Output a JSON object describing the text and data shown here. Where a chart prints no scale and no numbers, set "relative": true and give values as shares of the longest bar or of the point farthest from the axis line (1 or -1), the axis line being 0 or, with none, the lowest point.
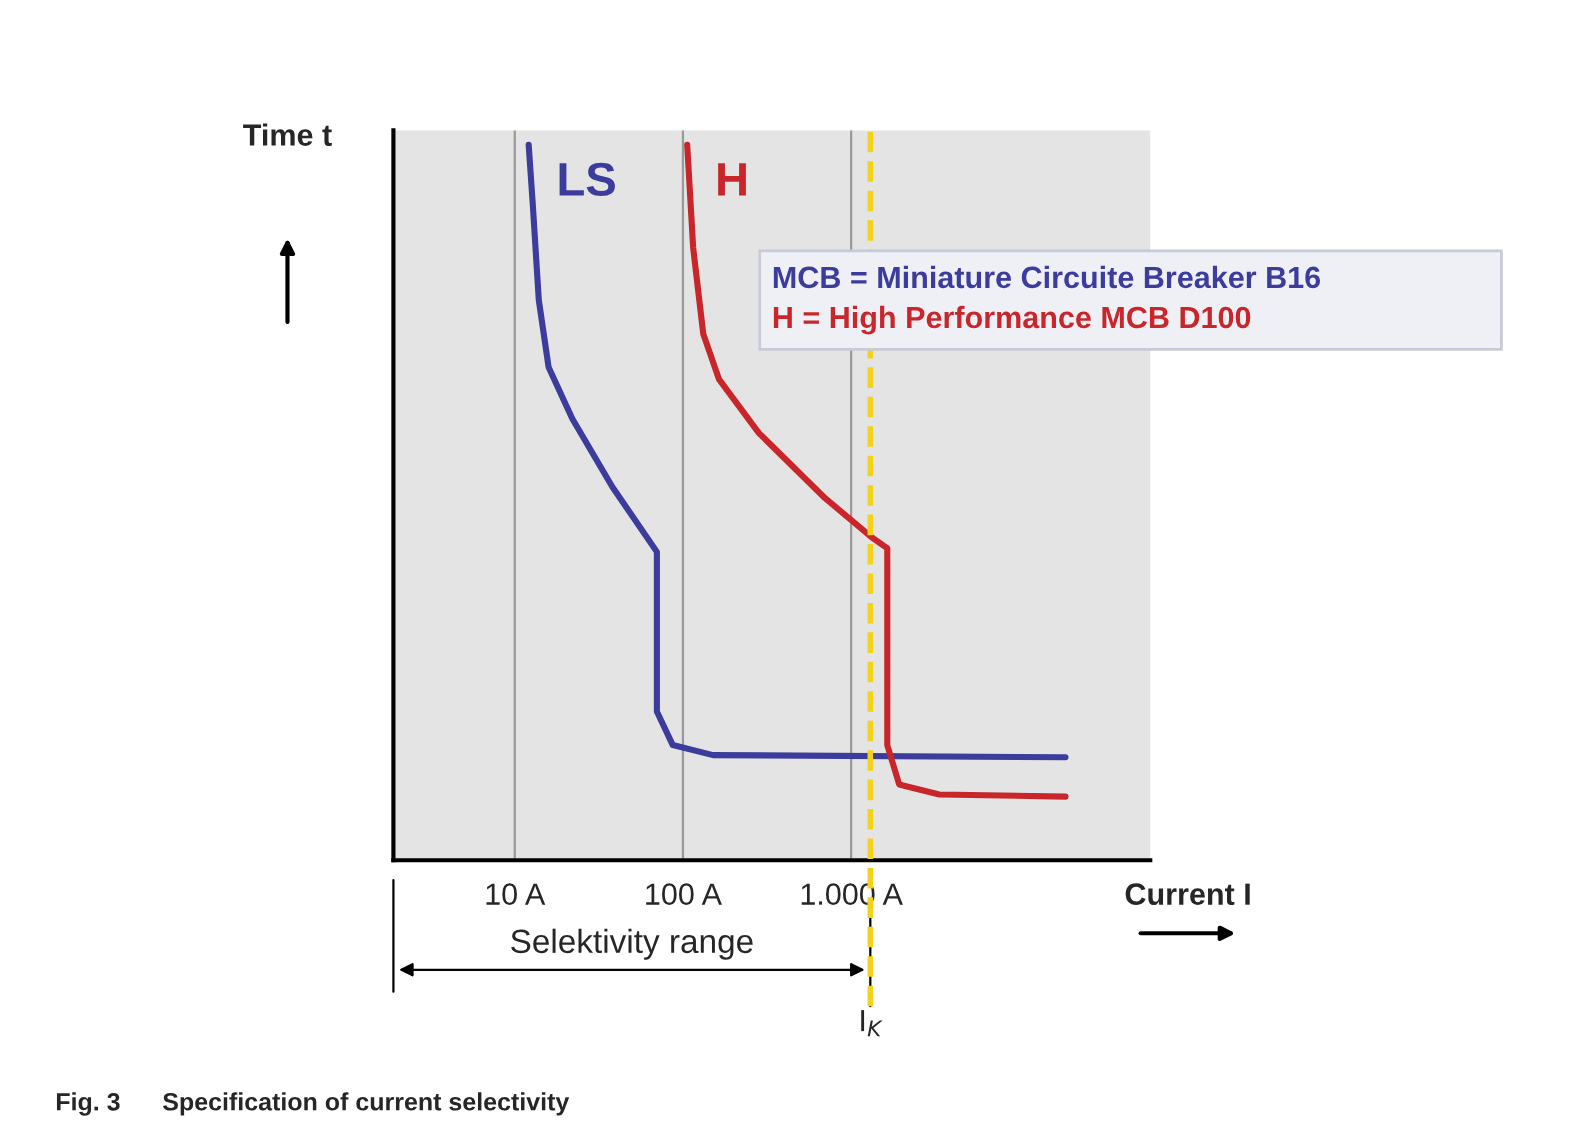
{
  "chart_data": {
    "type": "line",
    "relative": true,
    "log": "x",
    "xlabel": "Current I",
    "ylabel": "Time t",
    "xlim": [
      1.9,
      60000
    ],
    "xticks": [
      {
        "value": 10,
        "label": "10 A"
      },
      {
        "value": 100,
        "label": "100 A"
      },
      {
        "value": 1000,
        "label": "1.000 A"
      }
    ],
    "tick_labels": "x",
    "grid": "x",
    "marker": "none",
    "line_style": "solid",
    "series": [
      {
        "name": "LS",
        "color": "#3c3c9c",
        "x": [
          12.1,
          12.8,
          13.9,
          15.9,
          22,
          38,
          70,
          70,
          87,
          151,
          18800
        ],
        "values": [
          1.0,
          0.917,
          0.783,
          0.689,
          0.617,
          0.522,
          0.431,
          0.208,
          0.161,
          0.147,
          0.144
        ]
      },
      {
        "name": "H",
        "color": "#c8262a",
        "x": [
          106,
          115,
          132,
          164,
          283,
          700,
          1350,
          1640,
          1640,
          1930,
          3340,
          18800
        ],
        "values": [
          1.0,
          0.856,
          0.736,
          0.672,
          0.597,
          0.506,
          0.45,
          0.436,
          0.161,
          0.106,
          0.092,
          0.089
        ]
      }
    ],
    "ref_lines": [
      {
        "axis": "x",
        "value": 1300,
        "label": "I$_{K}$",
        "color": "#f2d21b",
        "line_style": "dashed"
      }
    ],
    "annotations": [
      "MCB = Miniature Circuite Breaker B16",
      "H = High Performance MCB D100",
      "Selektivity range",
      "Fig. 3      Specification of current selectivity"
    ]
  }
}
